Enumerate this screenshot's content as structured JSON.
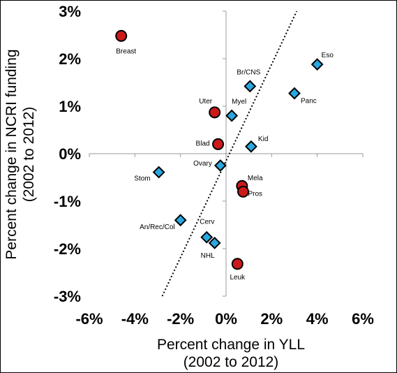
{
  "chart_data": {
    "type": "scatter",
    "title": "",
    "xlabel": [
      "Percent change in YLL",
      "(2002 to 2012)"
    ],
    "ylabel": [
      "Percent change in NCRI funding",
      "(2002 to 2012)"
    ],
    "xlim": [
      -6,
      6
    ],
    "ylim": [
      -3,
      3
    ],
    "x_ticks": [
      "-6%",
      "-4%",
      "-2%",
      "0%",
      "2%",
      "4%",
      "6%"
    ],
    "y_ticks": [
      "3%",
      "2%",
      "1%",
      "0%",
      "-1%",
      "-2%",
      "-3%"
    ],
    "grid": false,
    "trendline": {
      "style": "dotted",
      "x": [
        -2.8,
        3.1
      ],
      "y": [
        -3.0,
        3.0
      ]
    },
    "series": [
      {
        "marker": "circle",
        "color": "#cc1a1a",
        "points": [
          {
            "label": "Breast",
            "x": -4.6,
            "y": 2.48
          },
          {
            "label": "Uter",
            "x": -0.5,
            "y": 0.87
          },
          {
            "label": "Blad",
            "x": -0.35,
            "y": 0.2
          },
          {
            "label": "Mela",
            "x": 0.7,
            "y": -0.68
          },
          {
            "label": "Pros",
            "x": 0.75,
            "y": -0.8
          },
          {
            "label": "Leuk",
            "x": 0.5,
            "y": -2.32
          }
        ]
      },
      {
        "marker": "diamond",
        "color": "#29a8e0",
        "points": [
          {
            "label": "Eso",
            "x": 4.0,
            "y": 1.88
          },
          {
            "label": "Br/CNS",
            "x": 1.05,
            "y": 1.42
          },
          {
            "label": "Panc",
            "x": 3.0,
            "y": 1.27
          },
          {
            "label": "Myel",
            "x": 0.25,
            "y": 0.8
          },
          {
            "label": "Kid",
            "x": 1.1,
            "y": 0.15
          },
          {
            "label": "Ovary",
            "x": -0.25,
            "y": -0.25
          },
          {
            "label": "Stom",
            "x": -2.95,
            "y": -0.39
          },
          {
            "label": "An/Rec/Col",
            "x": -2.0,
            "y": -1.4
          },
          {
            "label": "Cerv",
            "x": -0.85,
            "y": -1.76
          },
          {
            "label": "NHL",
            "x": -0.5,
            "y": -1.88
          }
        ]
      }
    ]
  }
}
